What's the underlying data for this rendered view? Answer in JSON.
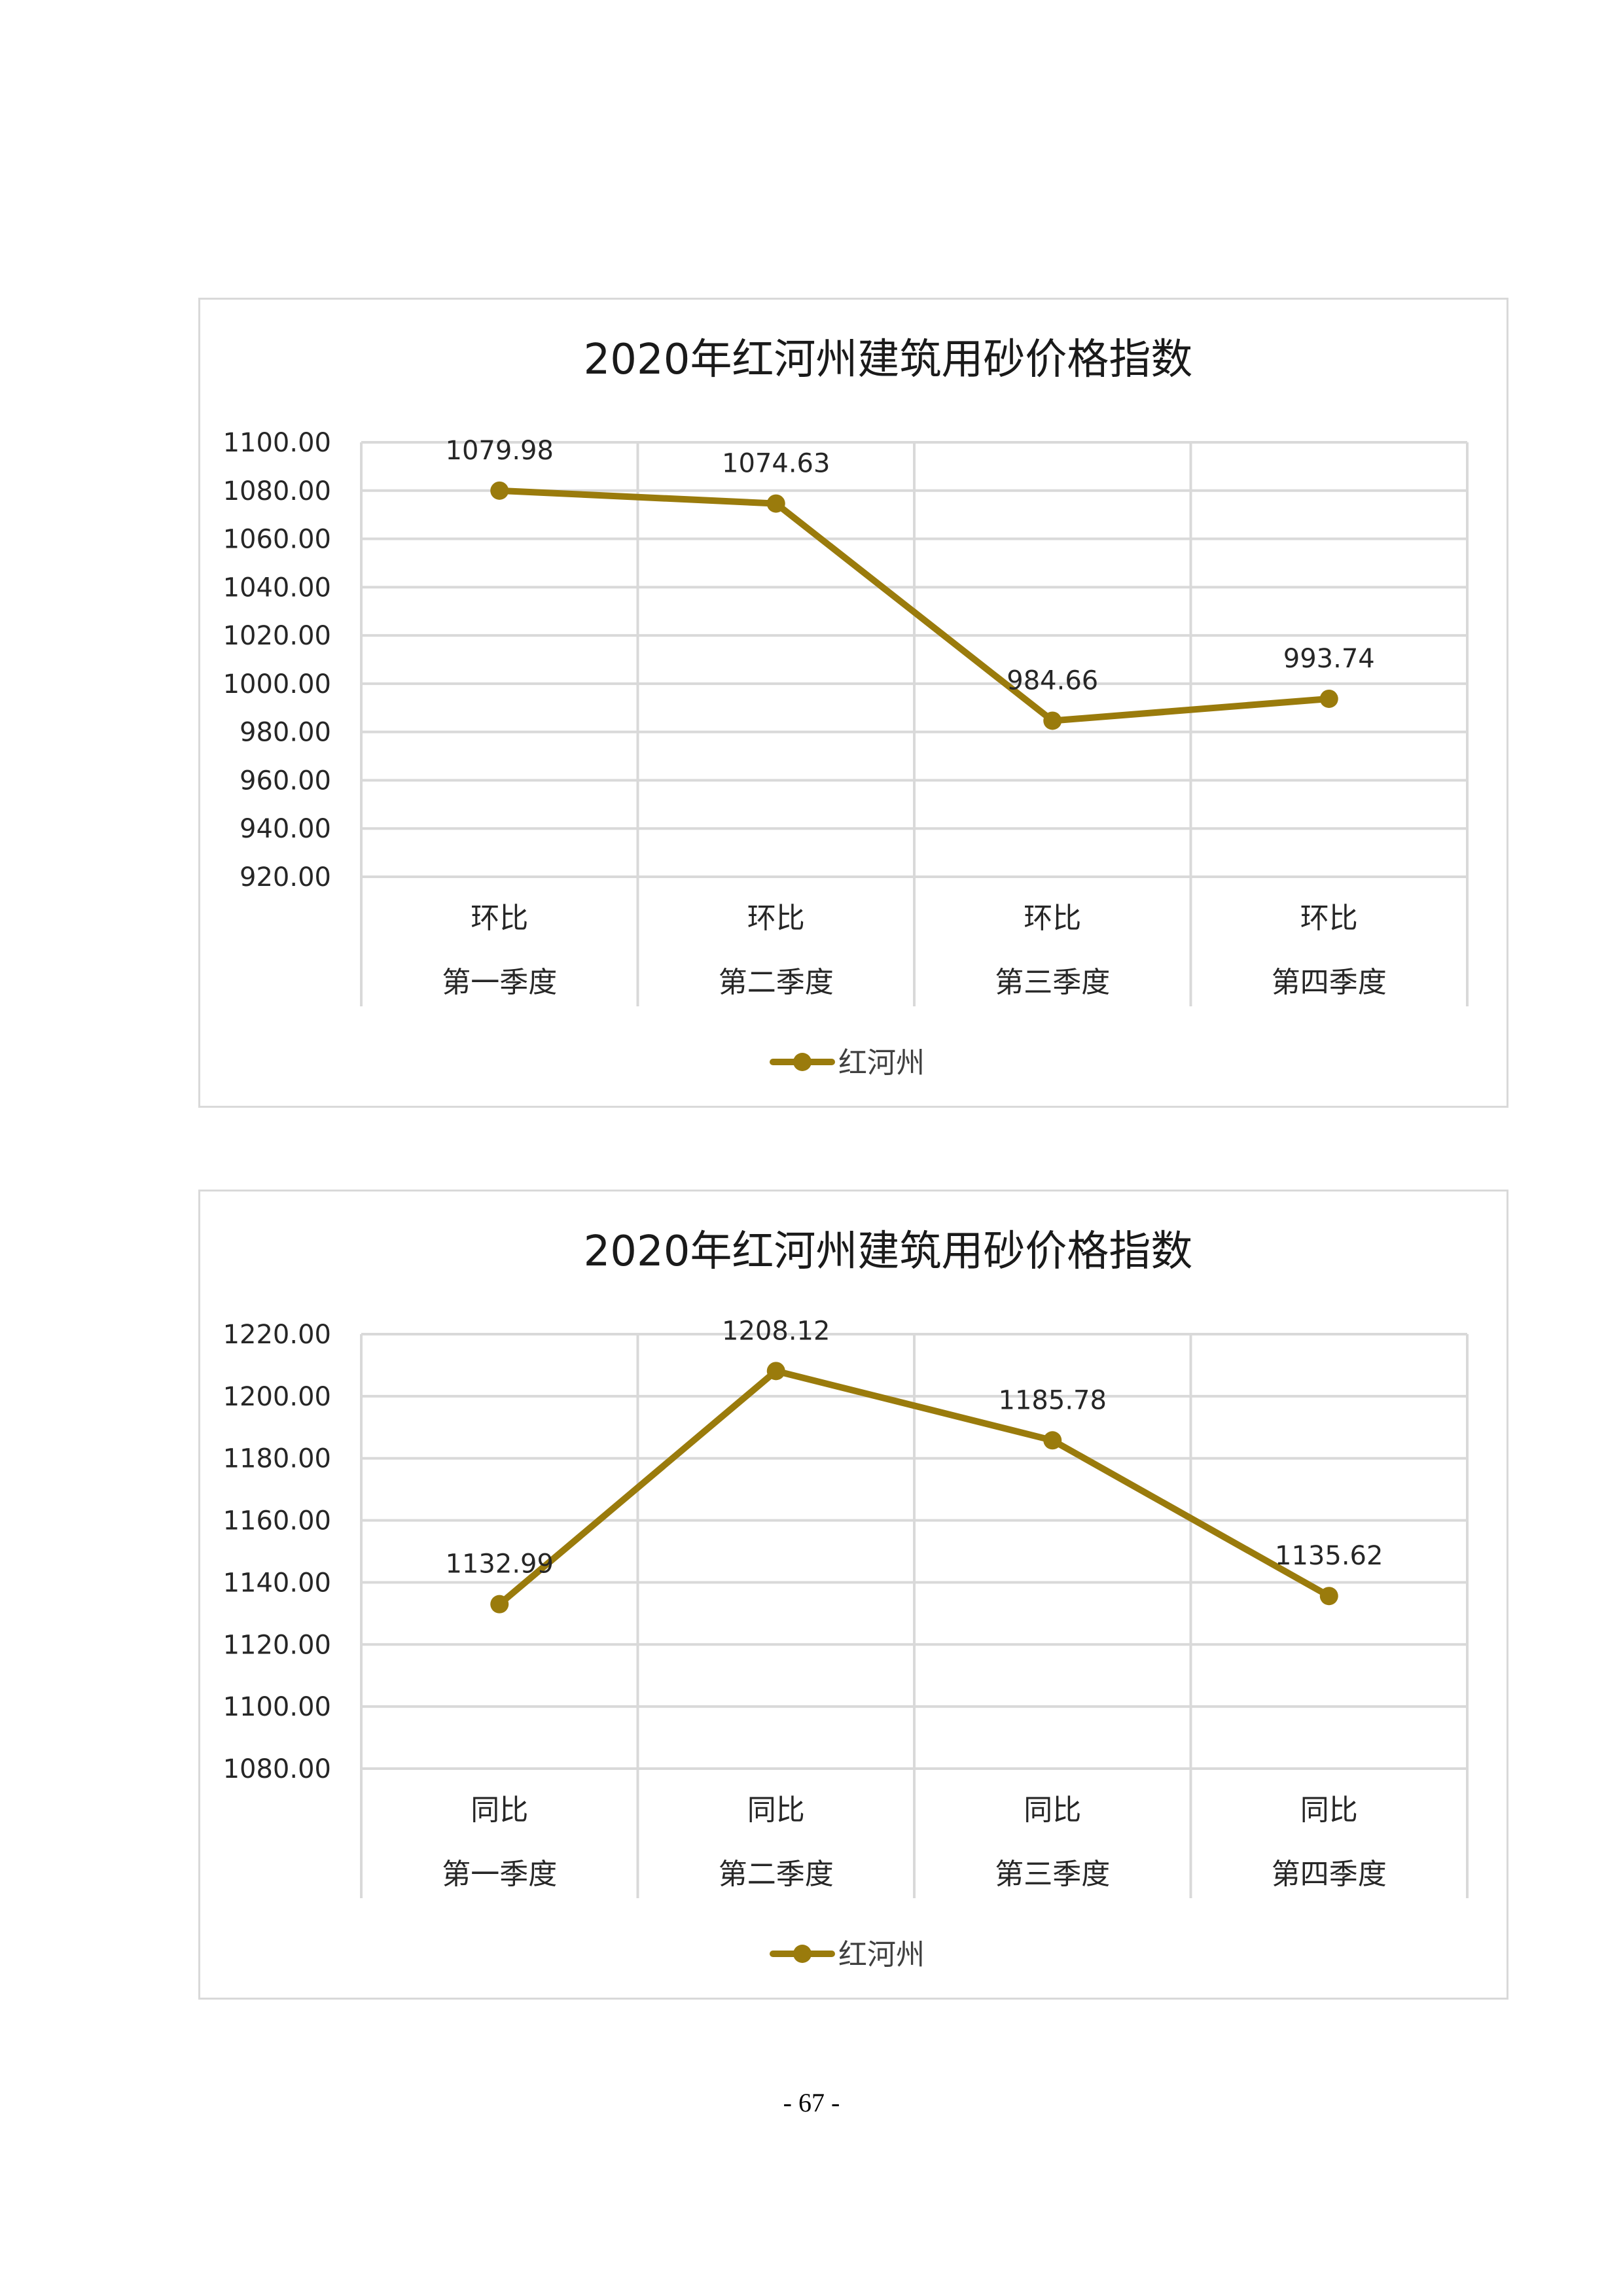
{
  "chart_data": [
    {
      "type": "line",
      "title": "2020年红河州建筑用砂价格指数",
      "categories": [
        [
          "环比",
          "第一季度"
        ],
        [
          "环比",
          "第二季度"
        ],
        [
          "环比",
          "第三季度"
        ],
        [
          "环比",
          "第四季度"
        ]
      ],
      "series": [
        {
          "name": "红河州",
          "values": [
            1079.98,
            1074.63,
            984.66,
            993.74
          ],
          "color": "#9a7b0c"
        }
      ],
      "data_labels": [
        "1079.98",
        "1074.63",
        "984.66",
        "993.74"
      ],
      "ylim": [
        920,
        1100
      ],
      "yticks": [
        "1100.00",
        "1080.00",
        "1060.00",
        "1040.00",
        "1020.00",
        "1000.00",
        "980.00",
        "960.00",
        "940.00",
        "920.00"
      ],
      "grid": true,
      "legend": "bottom"
    },
    {
      "type": "line",
      "title": "2020年红河州建筑用砂价格指数",
      "categories": [
        [
          "同比",
          "第一季度"
        ],
        [
          "同比",
          "第二季度"
        ],
        [
          "同比",
          "第三季度"
        ],
        [
          "同比",
          "第四季度"
        ]
      ],
      "series": [
        {
          "name": "红河州",
          "values": [
            1132.99,
            1208.12,
            1185.78,
            1135.62
          ],
          "color": "#9a7b0c"
        }
      ],
      "data_labels": [
        "1132.99",
        "1208.12",
        "1185.78",
        "1135.62"
      ],
      "ylim": [
        1080,
        1220
      ],
      "yticks": [
        "1220.00",
        "1200.00",
        "1180.00",
        "1160.00",
        "1140.00",
        "1120.00",
        "1100.00",
        "1080.00"
      ],
      "grid": true,
      "legend": "bottom"
    }
  ],
  "page_number": "- 67 -"
}
